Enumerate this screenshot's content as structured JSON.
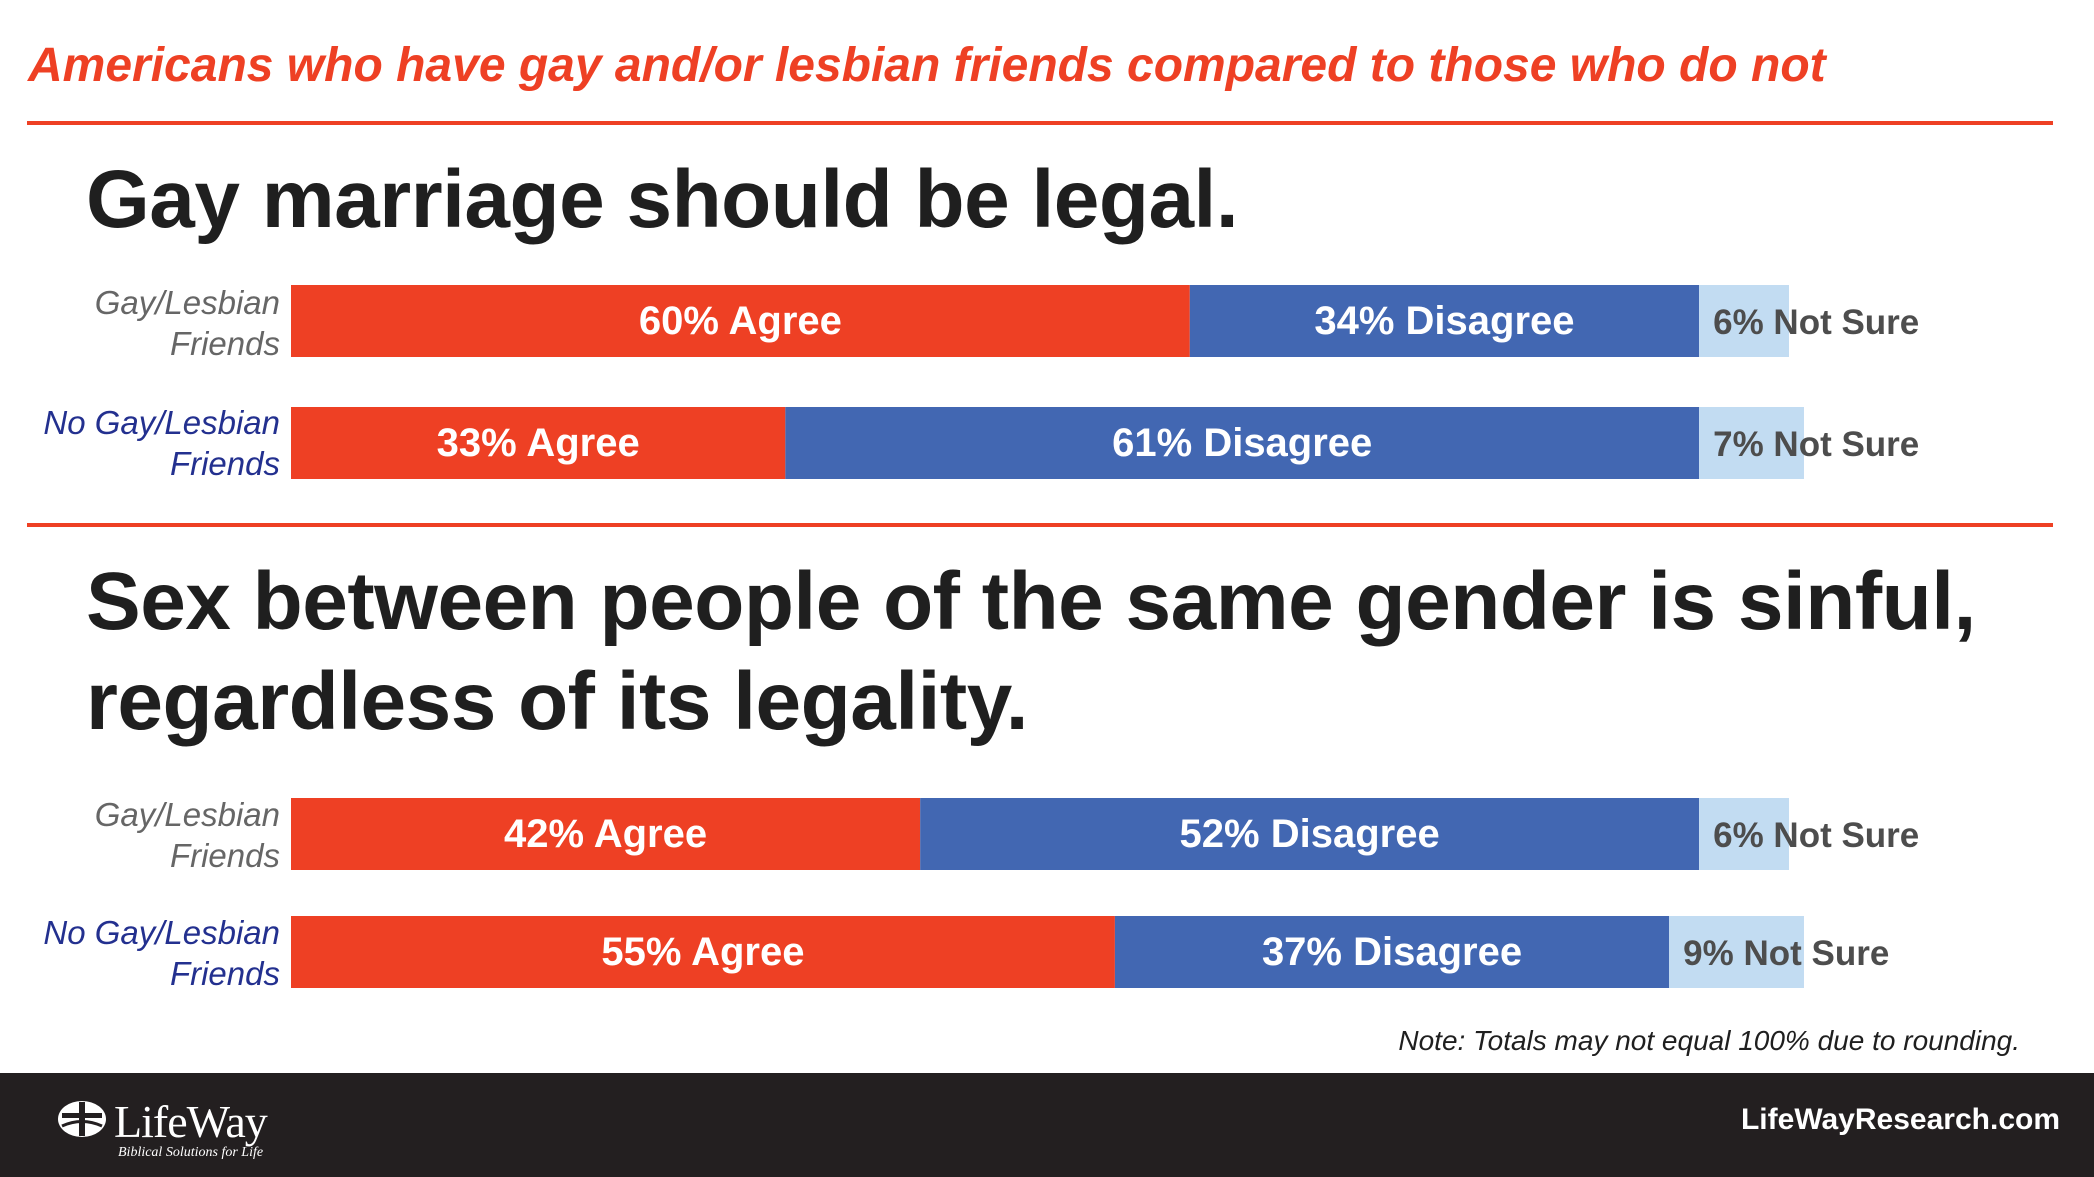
{
  "subtitle": "Americans who have gay and/or lesbian friends compared to those who do not",
  "colors": {
    "agree": "#ee4024",
    "disagree": "#4267b2",
    "not_sure": "#c2dcf2",
    "accent": "#ee4024",
    "footer_bg": "#231f20"
  },
  "chart_data": [
    {
      "type": "bar",
      "orientation": "horizontal",
      "stacked": true,
      "title": "Gay marriage should be legal.",
      "categories": [
        "Gay/Lesbian Friends",
        "No Gay/Lesbian Friends"
      ],
      "series": [
        {
          "name": "Agree",
          "values": [
            60,
            33
          ]
        },
        {
          "name": "Disagree",
          "values": [
            34,
            61
          ]
        },
        {
          "name": "Not Sure",
          "values": [
            6,
            7
          ]
        }
      ],
      "data_labels": [
        [
          "60% Agree",
          "34% Disagree",
          "6% Not Sure"
        ],
        [
          "33% Agree",
          "61% Disagree",
          "7% Not Sure"
        ]
      ]
    },
    {
      "type": "bar",
      "orientation": "horizontal",
      "stacked": true,
      "title": "Sex between people of the same gender is sinful, regardless of its legality.",
      "categories": [
        "Gay/Lesbian Friends",
        "No Gay/Lesbian Friends"
      ],
      "series": [
        {
          "name": "Agree",
          "values": [
            42,
            55
          ]
        },
        {
          "name": "Disagree",
          "values": [
            52,
            37
          ]
        },
        {
          "name": "Not Sure",
          "values": [
            6,
            9
          ]
        }
      ],
      "data_labels": [
        [
          "42% Agree",
          "52% Disagree",
          "6% Not Sure"
        ],
        [
          "55% Agree",
          "37% Disagree",
          "9% Not Sure"
        ]
      ]
    }
  ],
  "row_labels": [
    {
      "line1": "Gay/Lesbian",
      "line2": "Friends"
    },
    {
      "line1": "No Gay/Lesbian",
      "line2": "Friends"
    },
    {
      "line1": "Gay/Lesbian",
      "line2": "Friends"
    },
    {
      "line1": "No Gay/Lesbian",
      "line2": "Friends"
    }
  ],
  "note": "Note: Totals may not equal 100% due to rounding.",
  "footer": {
    "logo_name": "LifeWay",
    "logo_tagline": "Biblical Solutions for Life",
    "site": "LifeWayResearch.com"
  }
}
